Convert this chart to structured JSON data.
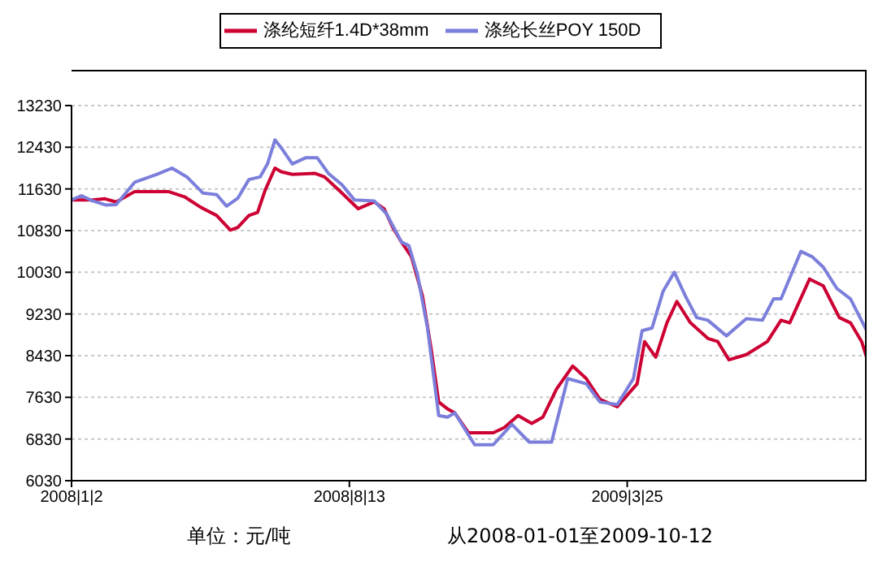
{
  "chart_data": {
    "type": "line",
    "annotations": [
      "单位：元/吨",
      "从2008-01-01至2009-10-12"
    ],
    "xlim": [
      "2008-01-02",
      "2009-10-04"
    ],
    "xticks": [
      {
        "value": "2008-01-02",
        "label": "2008|1|2"
      },
      {
        "value": "2008-08-13",
        "label": "2008|8|13"
      },
      {
        "value": "2009-03-25",
        "label": "2009|3|25"
      }
    ],
    "ylim": [
      6030,
      13230
    ],
    "yticks": [
      6030,
      6830,
      7630,
      8430,
      9230,
      10030,
      10830,
      11630,
      12430,
      13230
    ],
    "grid": "y",
    "legend": "top",
    "marker": "none",
    "line_style": "solid",
    "series": [
      {
        "name": "涤纶短纤1.4D*38mm",
        "color": "#cc0033",
        "x": [
          "2008-01-02",
          "2008-01-19",
          "2008-01-29",
          "2008-02-07",
          "2008-02-22",
          "2008-03-20",
          "2008-04-02",
          "2008-04-15",
          "2008-04-28",
          "2008-05-09",
          "2008-05-15",
          "2008-05-24",
          "2008-05-31",
          "2008-06-06",
          "2008-06-14",
          "2008-06-19",
          "2008-06-28",
          "2008-07-16",
          "2008-07-24",
          "2008-08-07",
          "2008-08-20",
          "2008-09-02",
          "2008-09-10",
          "2008-09-17",
          "2008-09-24",
          "2008-10-02",
          "2008-10-11",
          "2008-10-18",
          "2008-10-24",
          "2008-10-31",
          "2008-11-06",
          "2008-11-17",
          "2008-12-07",
          "2008-12-16",
          "2008-12-27",
          "2009-01-07",
          "2009-01-16",
          "2009-01-27",
          "2009-02-09",
          "2009-02-20",
          "2009-03-03",
          "2009-03-17",
          "2009-04-02",
          "2009-04-08",
          "2009-04-17",
          "2009-04-26",
          "2009-05-04",
          "2009-05-15",
          "2009-05-29",
          "2009-06-06",
          "2009-06-15",
          "2009-06-29",
          "2009-07-16",
          "2009-07-27",
          "2009-08-03",
          "2009-08-19",
          "2009-08-30",
          "2009-09-12",
          "2009-09-21",
          "2009-09-30",
          "2009-10-04"
        ],
        "values": [
          11420,
          11420,
          11440,
          11380,
          11580,
          11580,
          11480,
          11280,
          11120,
          10840,
          10890,
          11120,
          11180,
          11600,
          12030,
          11960,
          11910,
          11930,
          11860,
          11550,
          11250,
          11380,
          11250,
          10890,
          10610,
          10330,
          9570,
          8550,
          7540,
          7410,
          7330,
          6950,
          6950,
          7050,
          7280,
          7130,
          7250,
          7790,
          8230,
          7990,
          7590,
          7450,
          7890,
          8700,
          8400,
          9060,
          9470,
          9060,
          8760,
          8700,
          8350,
          8450,
          8700,
          9110,
          9060,
          9900,
          9770,
          9160,
          9060,
          8700,
          8400
        ]
      },
      {
        "name": "涤纶长丝POY 150D",
        "color": "#7b7fdb",
        "x": [
          "2008-01-02",
          "2008-01-10",
          "2008-01-19",
          "2008-01-30",
          "2008-02-07",
          "2008-02-22",
          "2008-03-11",
          "2008-03-23",
          "2008-04-04",
          "2008-04-17",
          "2008-04-28",
          "2008-05-06",
          "2008-05-15",
          "2008-05-24",
          "2008-06-02",
          "2008-06-08",
          "2008-06-14",
          "2008-06-19",
          "2008-06-28",
          "2008-07-09",
          "2008-07-18",
          "2008-07-27",
          "2008-08-07",
          "2008-08-17",
          "2008-09-02",
          "2008-09-12",
          "2008-09-24",
          "2008-09-30",
          "2008-10-07",
          "2008-10-15",
          "2008-10-24",
          "2008-10-31",
          "2008-11-06",
          "2008-11-22",
          "2008-12-07",
          "2008-12-22",
          "2009-01-05",
          "2009-01-23",
          "2009-02-05",
          "2009-02-20",
          "2009-03-03",
          "2009-03-17",
          "2009-03-30",
          "2009-04-06",
          "2009-04-14",
          "2009-04-23",
          "2009-05-02",
          "2009-05-11",
          "2009-05-20",
          "2009-05-29",
          "2009-06-13",
          "2009-06-29",
          "2009-07-12",
          "2009-07-21",
          "2009-07-27",
          "2009-08-12",
          "2009-08-21",
          "2009-08-30",
          "2009-09-10",
          "2009-09-21",
          "2009-10-04"
        ],
        "values": [
          11420,
          11500,
          11400,
          11320,
          11330,
          11760,
          11910,
          12030,
          11860,
          11550,
          11520,
          11300,
          11450,
          11810,
          11860,
          12110,
          12570,
          12420,
          12110,
          12230,
          12230,
          11930,
          11710,
          11420,
          11400,
          11150,
          10610,
          10540,
          9980,
          8960,
          7280,
          7250,
          7330,
          6720,
          6720,
          7110,
          6770,
          6770,
          7990,
          7890,
          7540,
          7490,
          7990,
          8910,
          8960,
          9670,
          10030,
          9570,
          9160,
          9110,
          8810,
          9140,
          9110,
          9520,
          9520,
          10430,
          10330,
          10130,
          9720,
          9520,
          8910
        ]
      }
    ]
  }
}
